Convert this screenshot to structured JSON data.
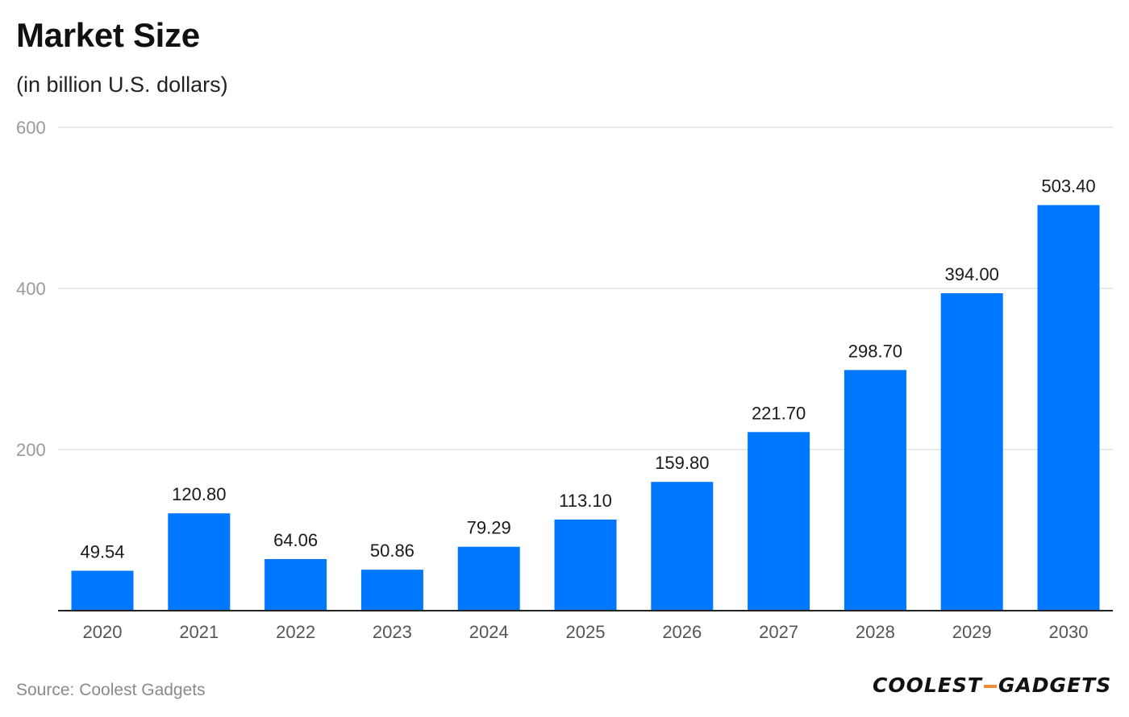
{
  "chart_data": {
    "type": "bar",
    "title": "Market Size",
    "subtitle": "(in billion U.S. dollars)",
    "categories": [
      "2020",
      "2021",
      "2022",
      "2023",
      "2024",
      "2025",
      "2026",
      "2027",
      "2028",
      "2029",
      "2030"
    ],
    "values": [
      49.54,
      120.8,
      64.06,
      50.86,
      79.29,
      113.1,
      159.8,
      221.7,
      298.7,
      394.0,
      503.4
    ],
    "value_labels": [
      "49.54",
      "120.80",
      "64.06",
      "50.86",
      "79.29",
      "113.10",
      "159.80",
      "221.70",
      "298.70",
      "394.00",
      "503.40"
    ],
    "xlabel": "",
    "ylabel": "",
    "ylim": [
      0,
      600
    ],
    "yticks": [
      200,
      400,
      600
    ],
    "grid": true,
    "legend": "none",
    "bar_color": "#0077ff",
    "grid_color": "#e2e2e2",
    "axis_color": "#222222"
  },
  "footer": {
    "source": "Source: Coolest Gadgets",
    "logo_left": "COOLEST",
    "logo_right": "GADGETS"
  }
}
